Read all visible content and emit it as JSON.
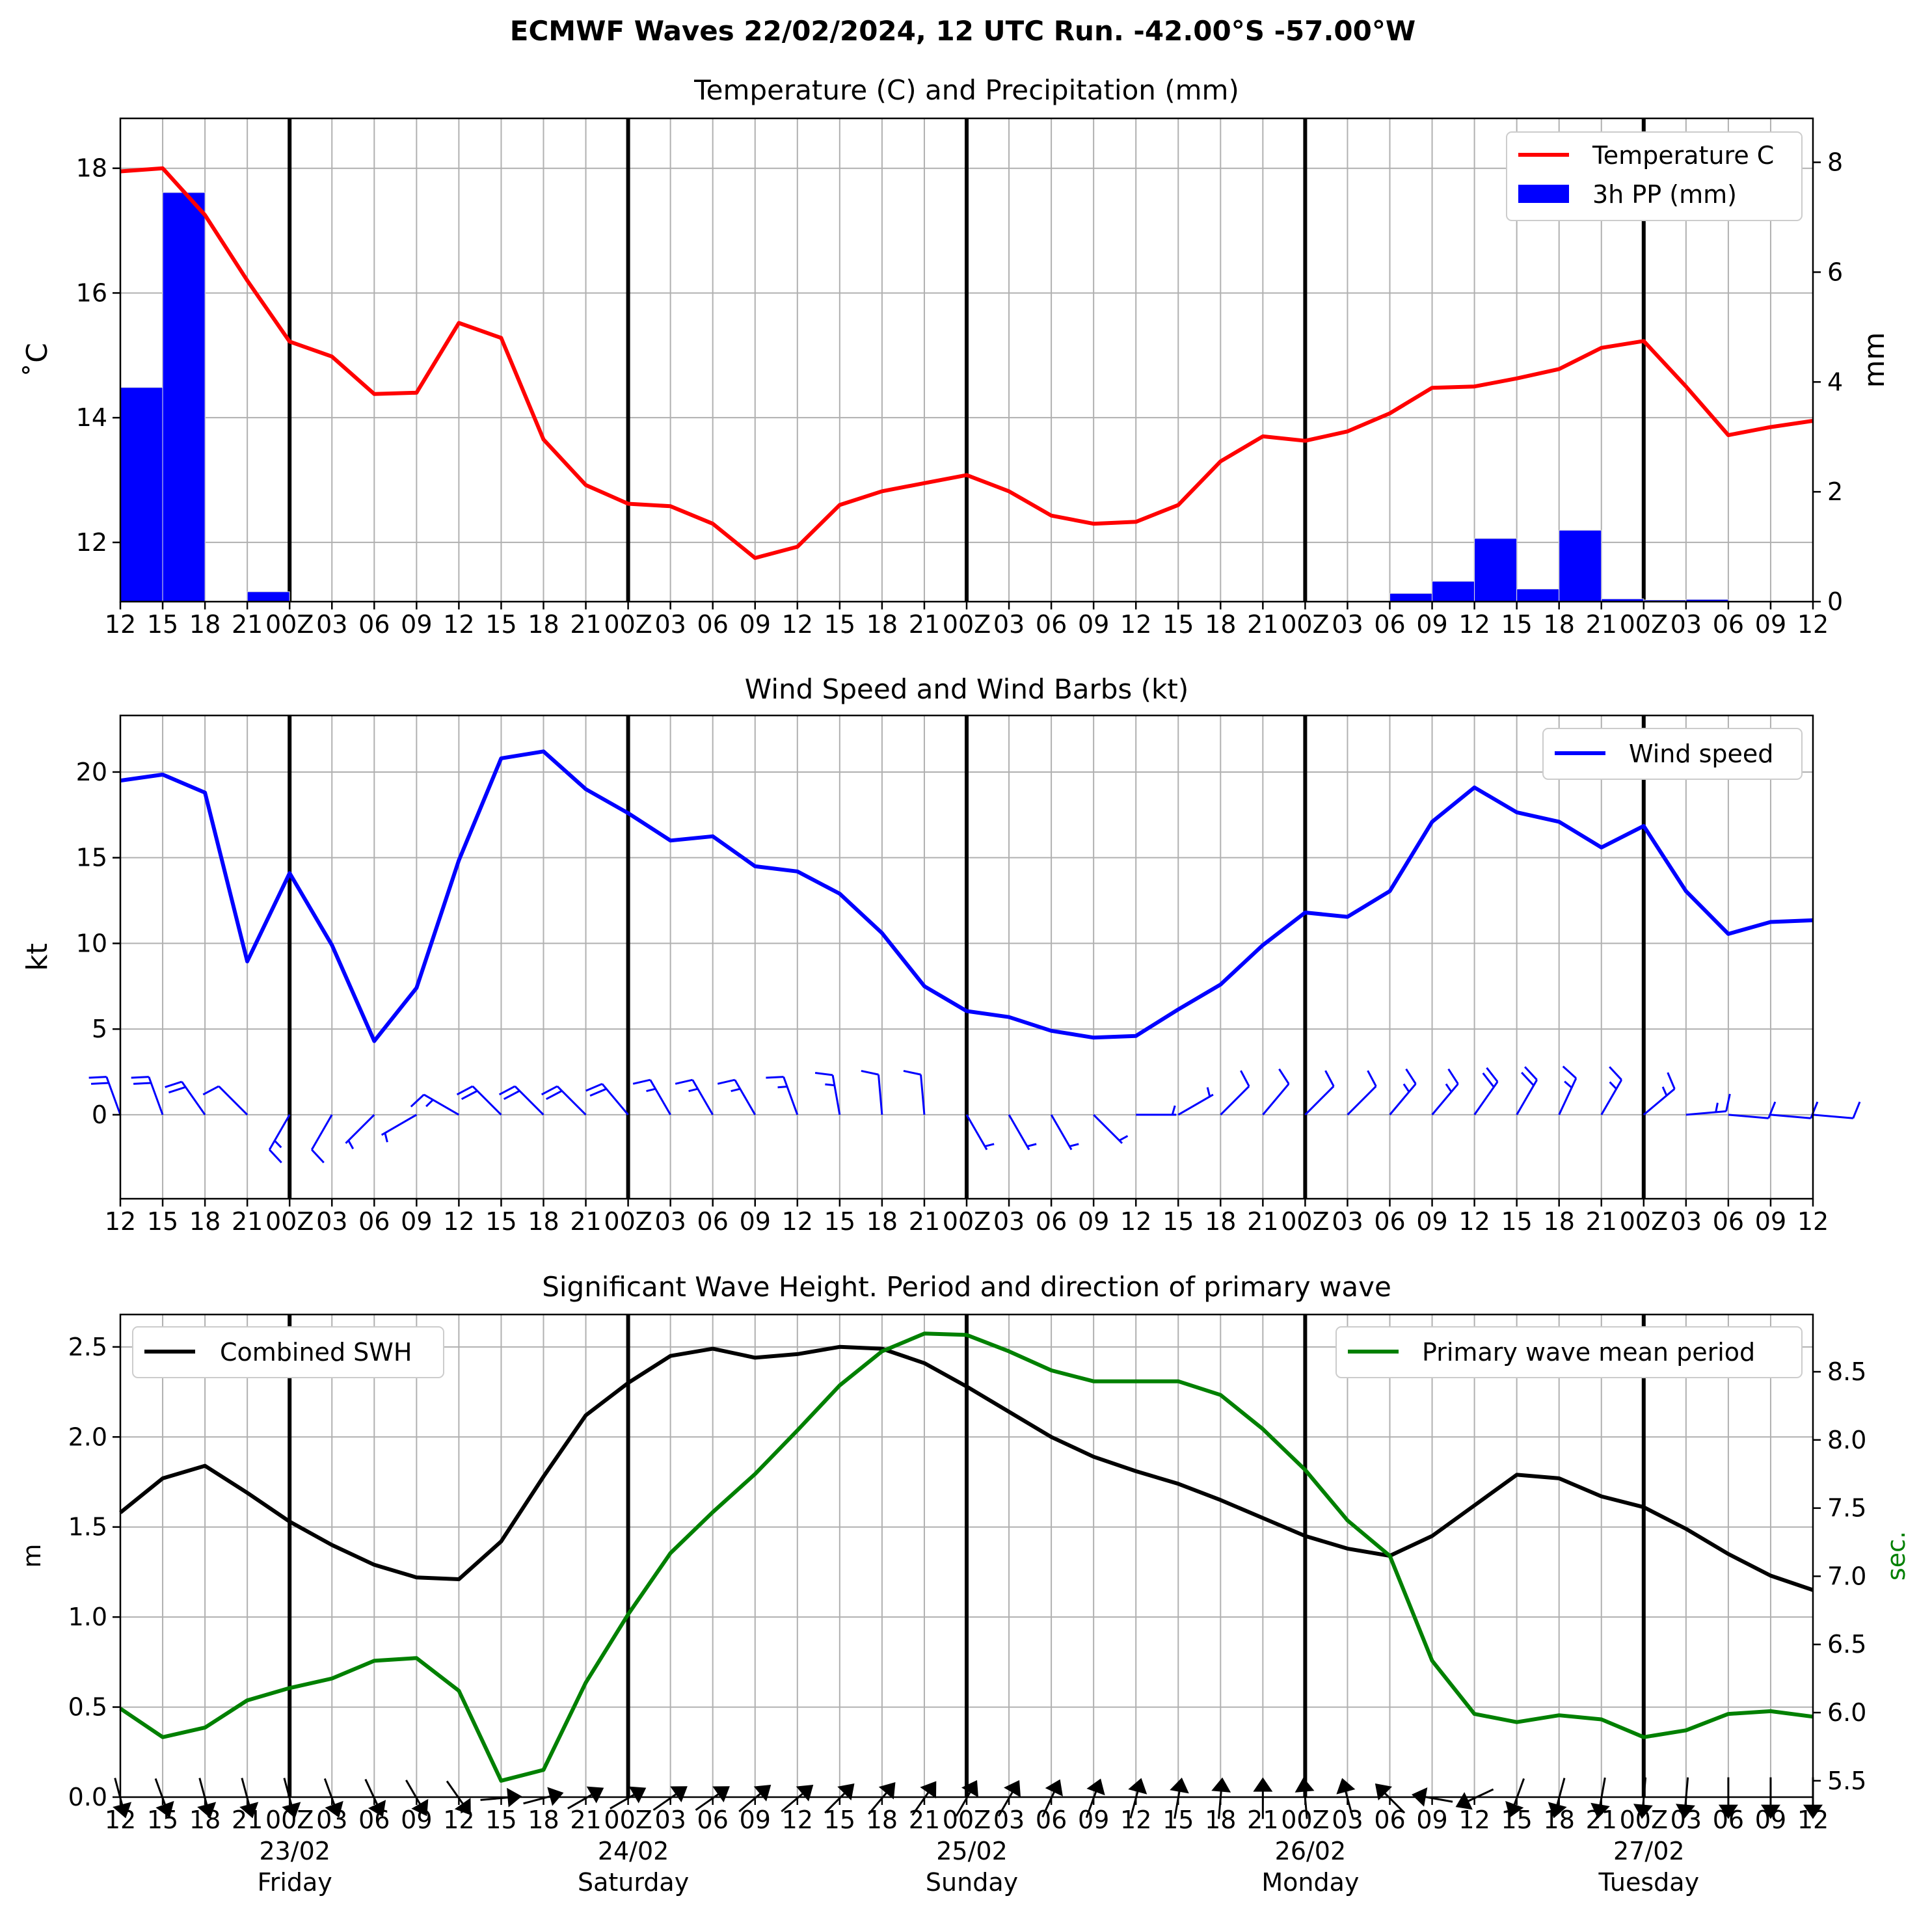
{
  "figure": {
    "title": "ECMWF Waves 22/02/2024, 12 UTC Run. -42.00°S -57.00°W"
  },
  "time_axis": {
    "tick_labels": [
      "12",
      "15",
      "18",
      "21",
      "00Z",
      "03",
      "06",
      "09",
      "12",
      "15",
      "18",
      "21",
      "00Z",
      "03",
      "06",
      "09",
      "12",
      "15",
      "18",
      "21",
      "00Z",
      "03",
      "06",
      "09",
      "12",
      "15",
      "18",
      "21",
      "00Z",
      "03",
      "06",
      "09",
      "12",
      "15",
      "18",
      "21",
      "00Z",
      "03",
      "06",
      "09",
      "12"
    ],
    "day_dates": [
      "23/02",
      "24/02",
      "25/02",
      "26/02",
      "27/02"
    ],
    "day_names": [
      "Friday",
      "Saturday",
      "Sunday",
      "Monday",
      "Tuesday"
    ]
  },
  "colors": {
    "temperature": "#ff0000",
    "precip": "#0000ff",
    "wind": "#0000ff",
    "swh": "#000000",
    "period": "#008000",
    "grid": "#b0b0b0"
  },
  "chart_data": [
    {
      "type": "line+bar",
      "title": "Temperature (C) and Precipitation (mm)",
      "ylabel": "$^\\circ$C",
      "ylabel_text": "˚C",
      "y2label": "mm",
      "ylim": [
        11.05,
        18.8
      ],
      "yticks": [
        12,
        14,
        16,
        18
      ],
      "y2lim": [
        0,
        8.8
      ],
      "y2ticks": [
        0,
        2,
        4,
        6,
        8
      ],
      "grid": true,
      "legend_placement": "top-right",
      "legend": [
        "Temperature C",
        "3h PP (mm)"
      ],
      "series": [
        {
          "name": "Temperature C",
          "kind": "line",
          "values": [
            17.95,
            18.0,
            17.25,
            16.2,
            15.22,
            14.98,
            14.38,
            14.4,
            15.52,
            15.28,
            13.65,
            12.92,
            12.62,
            12.58,
            12.3,
            11.75,
            11.93,
            12.6,
            12.82,
            12.95,
            13.08,
            12.82,
            12.43,
            12.3,
            12.33,
            12.6,
            13.3,
            13.7,
            13.63,
            13.78,
            14.07,
            14.48,
            14.5,
            14.63,
            14.78,
            15.12,
            15.23,
            14.5,
            13.72,
            13.85,
            13.95
          ]
        },
        {
          "name": "3h PP (mm)",
          "kind": "bar",
          "values": [
            0,
            3.9,
            7.45,
            0,
            0.18,
            0,
            0,
            0,
            0,
            0,
            0,
            0,
            0,
            0,
            0,
            0,
            0,
            0,
            0,
            0,
            0,
            0,
            0,
            0,
            0,
            0,
            0,
            0,
            0,
            0,
            0,
            0.15,
            0.37,
            1.15,
            0.23,
            1.3,
            0.05,
            0.03,
            0.04,
            0,
            0
          ]
        }
      ]
    },
    {
      "type": "line+barbs",
      "title": "Wind Speed and Wind Barbs (kt)",
      "ylabel": "kt",
      "ylim": [
        -4.9,
        23.3
      ],
      "yticks": [
        0,
        5,
        10,
        15,
        20
      ],
      "grid": true,
      "legend_placement": "top-right",
      "legend": [
        "Wind speed"
      ],
      "series": [
        {
          "name": "Wind speed",
          "values": [
            19.5,
            19.85,
            18.8,
            8.95,
            14.1,
            9.9,
            4.3,
            7.4,
            14.85,
            20.8,
            21.2,
            19.0,
            17.6,
            16.0,
            16.25,
            14.5,
            14.2,
            12.9,
            10.6,
            7.5,
            6.05,
            5.7,
            4.9,
            4.5,
            4.6,
            6.15,
            7.6,
            9.9,
            11.8,
            11.55,
            13.05,
            17.1,
            19.1,
            17.65,
            17.1,
            15.6,
            16.85,
            13.05,
            10.55,
            11.25,
            11.35
          ]
        }
      ],
      "barb_directions_deg": [
        340,
        340,
        325,
        315,
        210,
        210,
        225,
        240,
        300,
        315,
        315,
        315,
        320,
        330,
        330,
        330,
        340,
        350,
        355,
        355,
        150,
        150,
        150,
        135,
        90,
        60,
        45,
        40,
        45,
        45,
        40,
        40,
        35,
        30,
        25,
        30,
        50,
        85,
        95,
        95,
        95
      ]
    },
    {
      "type": "line",
      "title": "Significant Wave Height. Period and direction of primary wave",
      "ylabel": "m",
      "y2label": "sec.",
      "ylim": [
        0.0,
        2.68
      ],
      "yticks": [
        0.0,
        0.5,
        1.0,
        1.5,
        2.0,
        2.5
      ],
      "ytick_labels": [
        "0.0",
        "0.5",
        "1.0",
        "1.5",
        "2.0",
        "2.5"
      ],
      "y2lim": [
        5.38,
        8.92
      ],
      "y2ticks": [
        5.5,
        6.0,
        6.5,
        7.0,
        7.5,
        8.0,
        8.5
      ],
      "y2tick_labels": [
        "5.5",
        "6.0",
        "6.5",
        "7.0",
        "7.5",
        "8.0",
        "8.5"
      ],
      "grid": true,
      "legend_left": [
        "Combined SWH"
      ],
      "legend_right": [
        "Primary wave mean period"
      ],
      "series": [
        {
          "name": "Combined SWH",
          "axis": "left",
          "values": [
            1.58,
            1.77,
            1.84,
            1.69,
            1.53,
            1.4,
            1.29,
            1.22,
            1.21,
            1.42,
            1.78,
            2.12,
            2.3,
            2.45,
            2.49,
            2.44,
            2.46,
            2.5,
            2.49,
            2.41,
            2.28,
            2.14,
            2.0,
            1.89,
            1.81,
            1.74,
            1.65,
            1.55,
            1.45,
            1.38,
            1.34,
            1.45,
            1.62,
            1.79,
            1.77,
            1.67,
            1.61,
            1.49,
            1.35,
            1.23,
            1.15
          ]
        },
        {
          "name": "Primary wave mean period",
          "axis": "right",
          "values": [
            6.03,
            5.82,
            5.89,
            6.09,
            6.18,
            6.25,
            6.38,
            6.4,
            6.16,
            5.5,
            5.58,
            6.22,
            6.72,
            7.17,
            7.47,
            7.75,
            8.07,
            8.4,
            8.65,
            8.78,
            8.77,
            8.65,
            8.51,
            8.43,
            8.43,
            8.43,
            8.33,
            8.08,
            7.78,
            7.41,
            7.15,
            6.38,
            5.99,
            5.93,
            5.98,
            5.95,
            5.82,
            5.87,
            5.99,
            6.01,
            5.97
          ]
        }
      ],
      "arrow_directions_deg": [
        345,
        340,
        345,
        345,
        345,
        340,
        335,
        330,
        325,
        265,
        255,
        240,
        240,
        235,
        235,
        230,
        230,
        225,
        220,
        215,
        210,
        210,
        205,
        200,
        195,
        190,
        185,
        180,
        175,
        165,
        135,
        100,
        65,
        20,
        15,
        10,
        5,
        5,
        0,
        0,
        0
      ]
    }
  ]
}
